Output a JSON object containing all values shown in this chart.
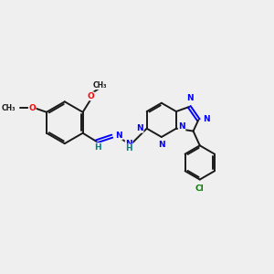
{
  "bg_color": "#efefef",
  "bond_color": "#1a1a1a",
  "N_color": "#0000ff",
  "O_color": "#ff0000",
  "Cl_color": "#008000",
  "H_color": "#008080",
  "linewidth": 1.4,
  "figsize": [
    3.0,
    3.0
  ],
  "dpi": 100,
  "xlim": [
    0,
    10
  ],
  "ylim": [
    0,
    10
  ]
}
